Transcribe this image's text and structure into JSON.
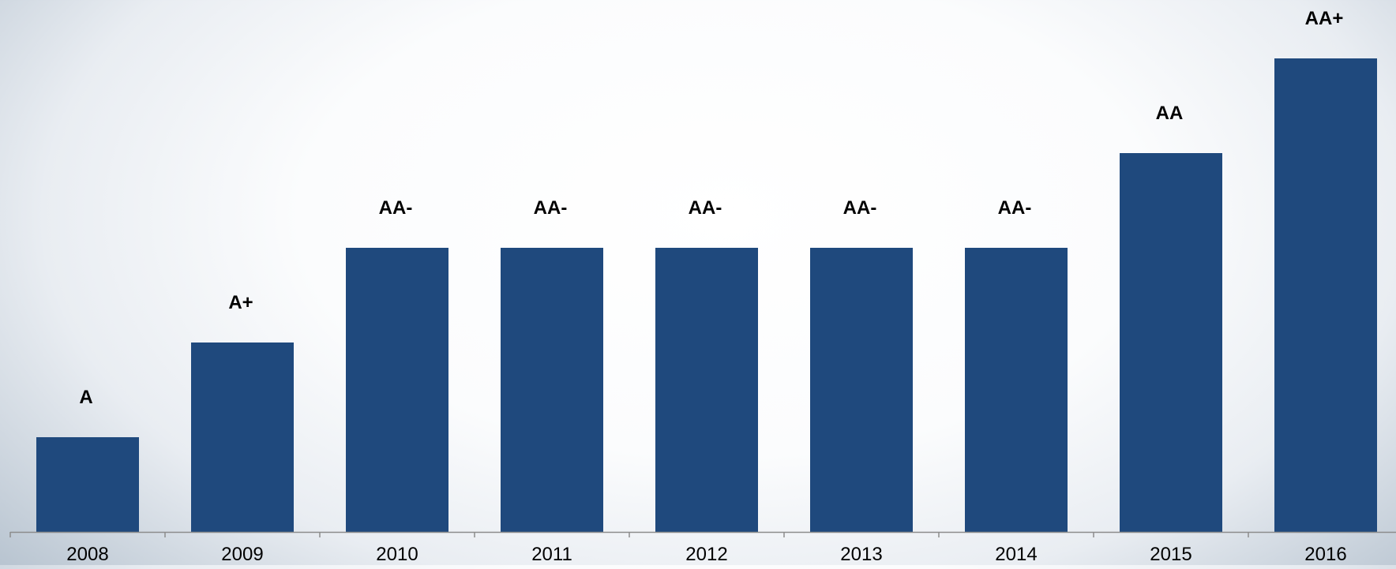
{
  "chart_data": {
    "type": "bar",
    "categories": [
      "2008",
      "2009",
      "2010",
      "2011",
      "2012",
      "2013",
      "2014",
      "2015",
      "2016"
    ],
    "values": [
      1,
      2,
      3,
      3,
      3,
      3,
      3,
      4,
      5
    ],
    "labels": [
      "A",
      "A+",
      "AA-",
      "AA-",
      "AA-",
      "AA-",
      "AA-",
      "AA",
      "AA+"
    ],
    "ylim": [
      0,
      5
    ],
    "title": "",
    "xlabel": "",
    "ylabel": "",
    "grid": false,
    "bar_color": "#1f497d",
    "axis_color": "#8c8c8c",
    "text_color": "#000000"
  }
}
